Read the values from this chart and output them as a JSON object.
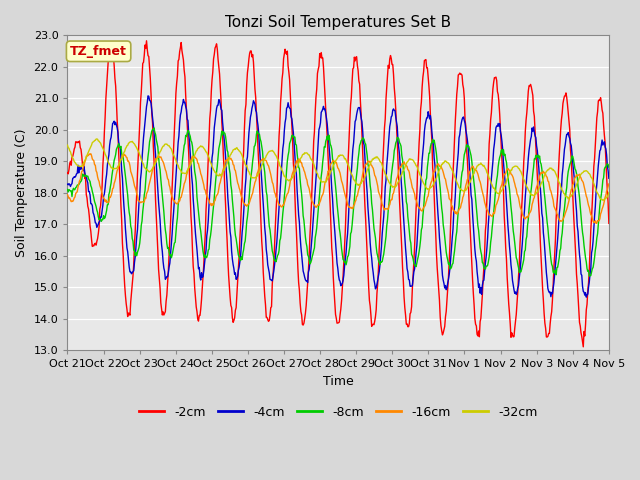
{
  "title": "Tonzi Soil Temperatures Set B",
  "xlabel": "Time",
  "ylabel": "Soil Temperature (C)",
  "ylim": [
    13.0,
    23.0
  ],
  "yticks": [
    13.0,
    14.0,
    15.0,
    16.0,
    17.0,
    18.0,
    19.0,
    20.0,
    21.0,
    22.0,
    23.0
  ],
  "xtick_labels": [
    "Oct 21",
    "Oct 22",
    "Oct 23",
    "Oct 24",
    "Oct 25",
    "Oct 26",
    "Oct 27",
    "Oct 28",
    "Oct 29",
    "Oct 30",
    "Oct 31",
    "Nov 1",
    "Nov 2",
    "Nov 3",
    "Nov 4",
    "Nov 5"
  ],
  "legend_labels": [
    "-2cm",
    "-4cm",
    "-8cm",
    "-16cm",
    "-32cm"
  ],
  "legend_colors": [
    "#ff0000",
    "#0000cc",
    "#00cc00",
    "#ff8800",
    "#cccc00"
  ],
  "annotation_text": "TZ_fmet",
  "annotation_bg": "#ffffcc",
  "annotation_border": "#aaaa44",
  "plot_bg": "#e8e8e8",
  "title_fontsize": 11,
  "axis_fontsize": 9,
  "tick_fontsize": 8,
  "n_points": 720,
  "days": 15.5
}
